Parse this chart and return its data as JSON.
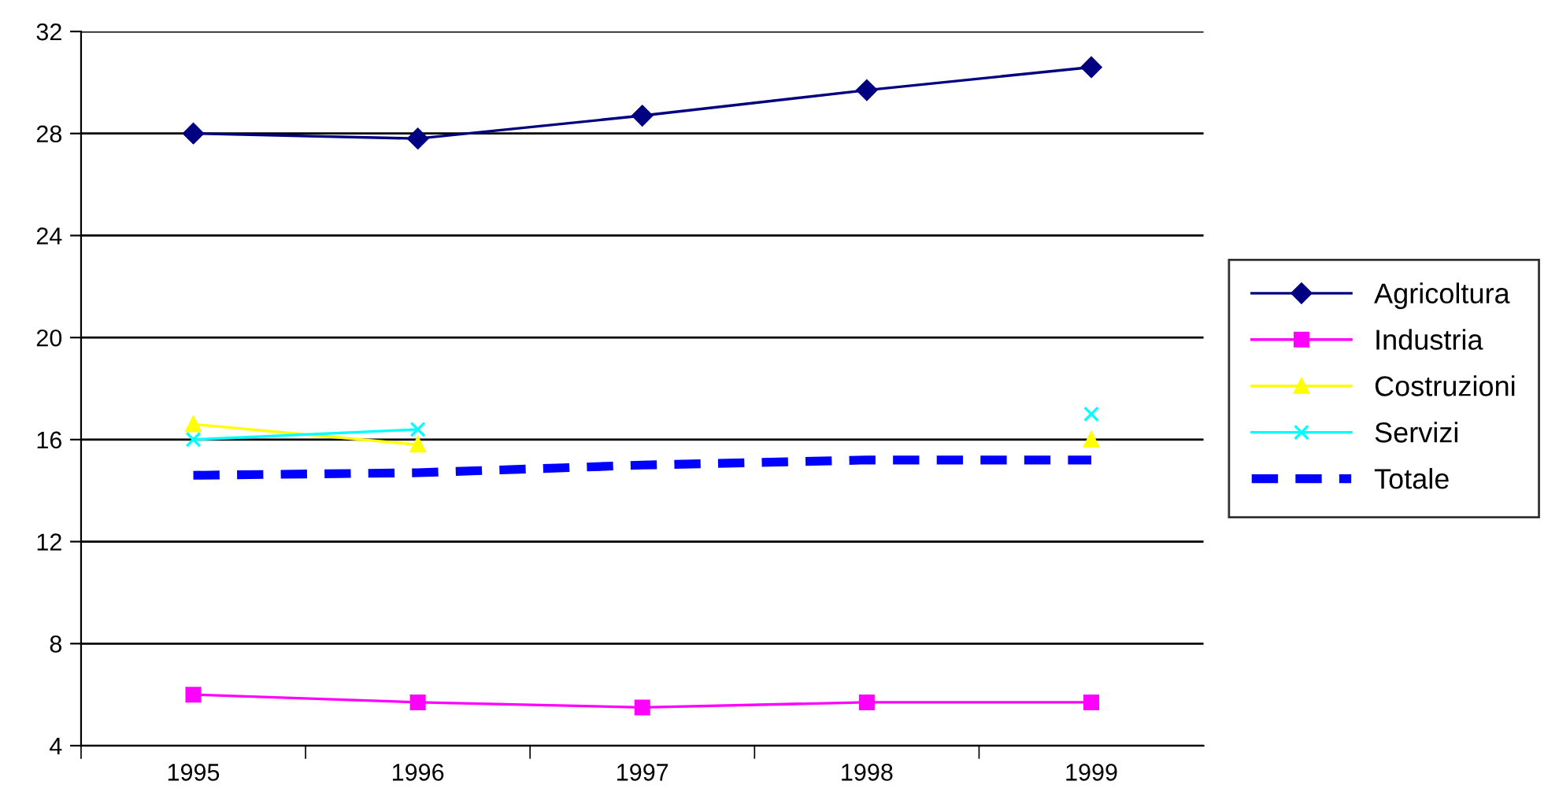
{
  "chart_data": {
    "type": "line",
    "categories": [
      "1995",
      "1996",
      "1997",
      "1998",
      "1999"
    ],
    "series": [
      {
        "name": "Agricoltura",
        "color": "#000080",
        "marker": "diamond",
        "line_style": "solid",
        "values": [
          28.0,
          27.8,
          28.7,
          29.7,
          30.6
        ]
      },
      {
        "name": "Industria",
        "color": "#ff00ff",
        "marker": "square",
        "line_style": "solid",
        "values": [
          6.0,
          5.7,
          5.5,
          5.7,
          5.7
        ]
      },
      {
        "name": "Costruzioni",
        "color": "#ffff00",
        "marker": "triangle",
        "line_style": "solid",
        "values": [
          16.6,
          15.8,
          null,
          null,
          16.0
        ]
      },
      {
        "name": "Servizi",
        "color": "#00ffff",
        "marker": "cross",
        "line_style": "solid",
        "values": [
          16.0,
          16.4,
          null,
          null,
          17.0
        ]
      },
      {
        "name": "Totale",
        "color": "#0000ff",
        "marker": "none",
        "line_style": "dashed",
        "values": [
          14.6,
          14.7,
          15.0,
          15.2,
          15.2
        ]
      }
    ],
    "ylim": [
      4,
      32
    ],
    "yticks": [
      4,
      8,
      12,
      16,
      20,
      24,
      28,
      32
    ],
    "grid": "y",
    "legend": "right"
  }
}
